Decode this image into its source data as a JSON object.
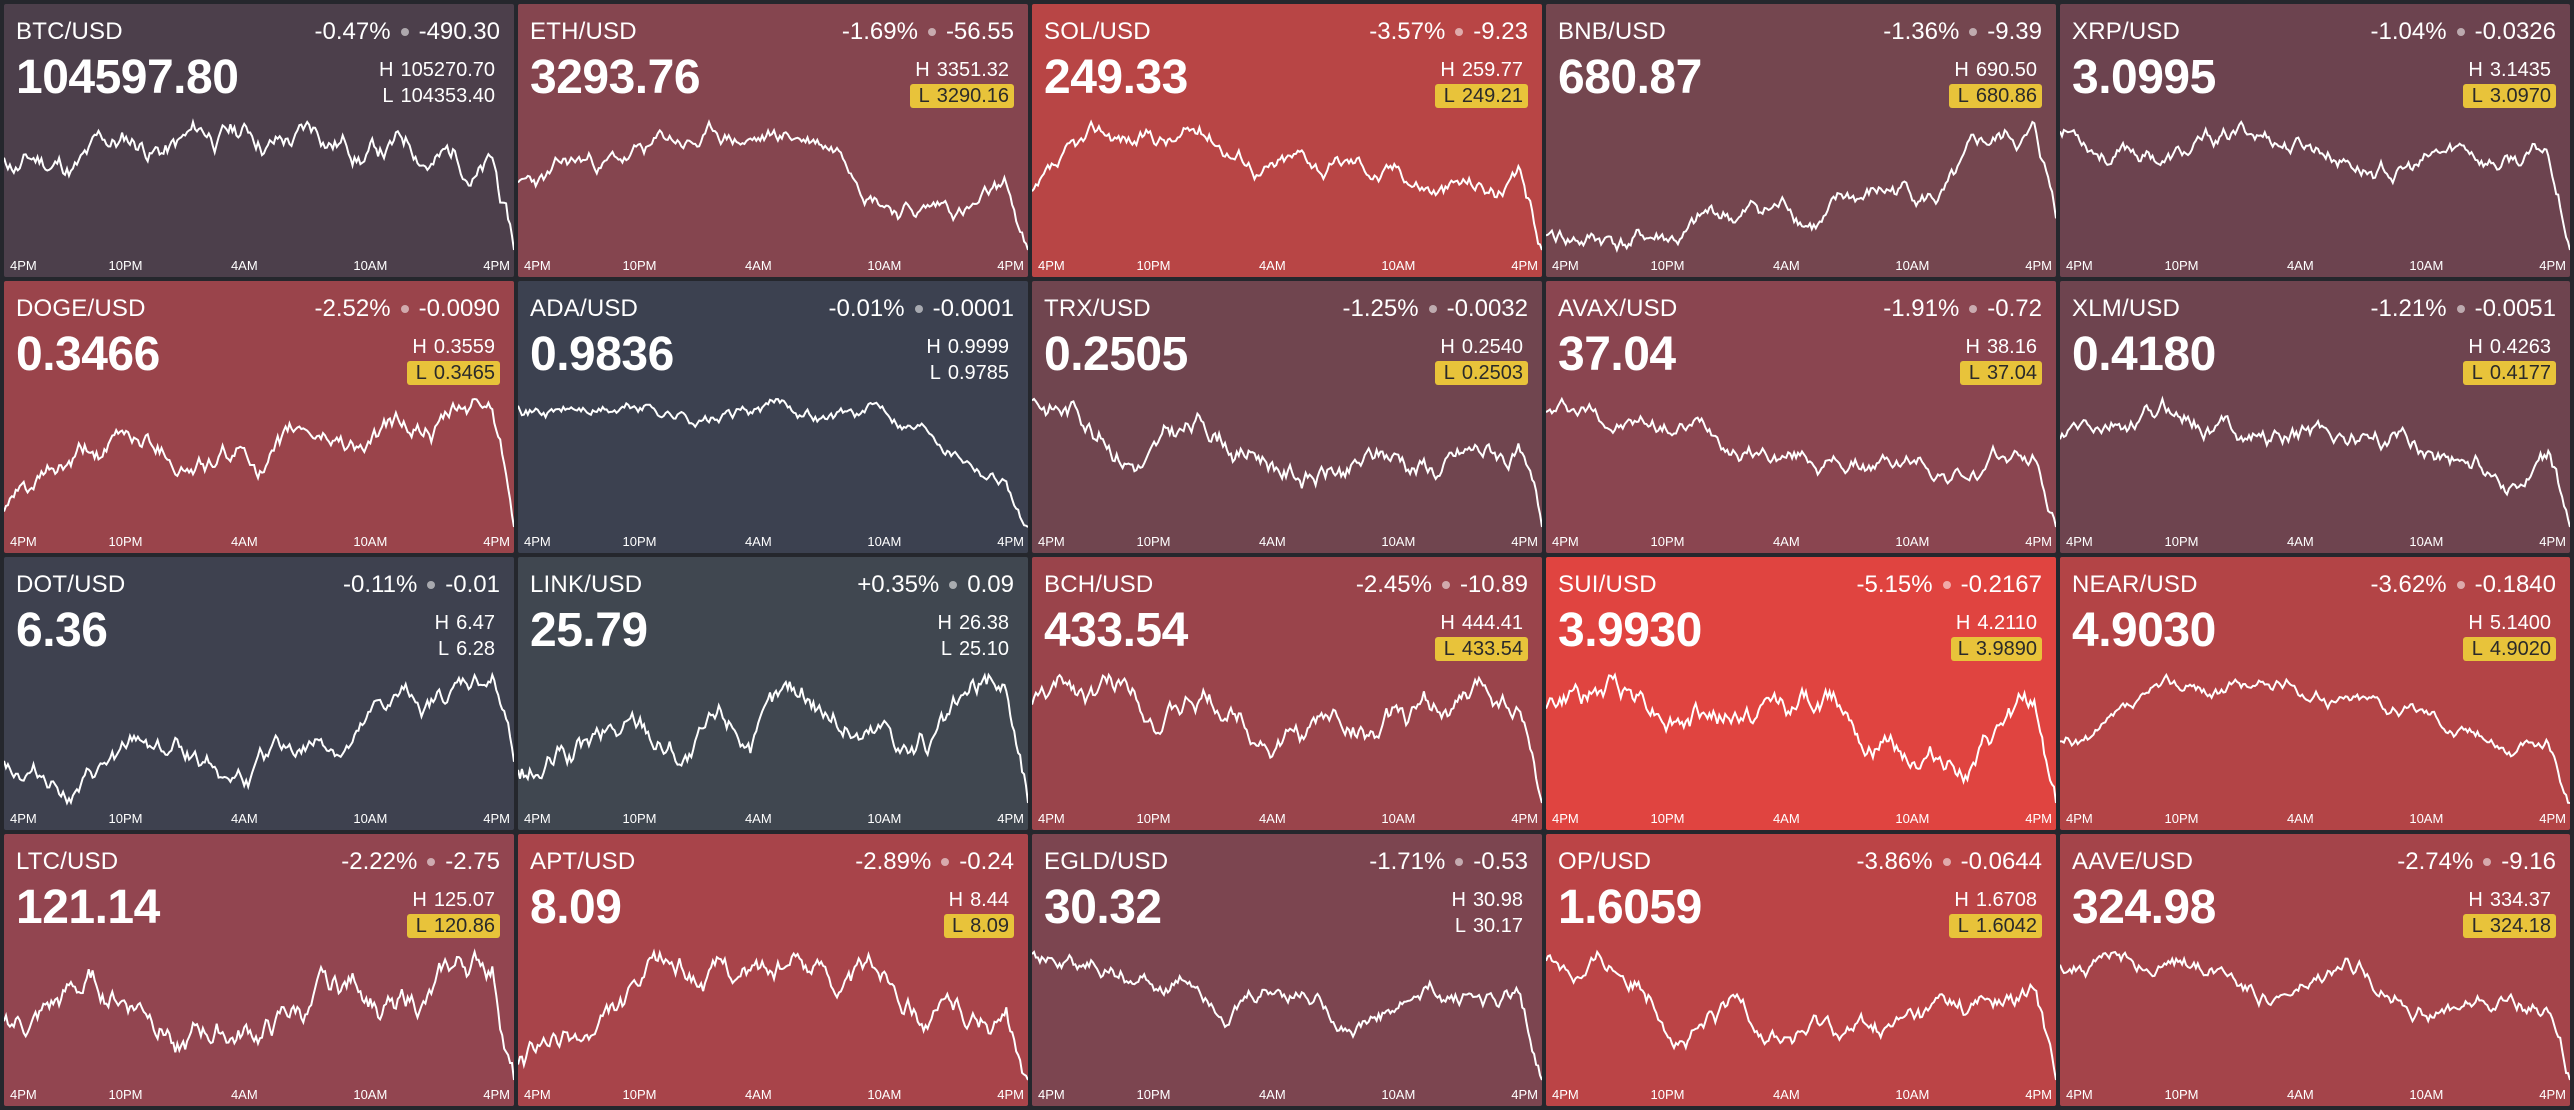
{
  "time_labels": [
    "4PM",
    "10PM",
    "4AM",
    "10AM",
    "4PM"
  ],
  "colors": {
    "neutral": "#3d414d",
    "red_mild": "#6c4550",
    "red_mid": "#8a4550",
    "red_strong": "#b34446",
    "red_max": "#e04440",
    "highlight": "#e8c33a"
  },
  "tickers": [
    {
      "symbol": "BTC/USD",
      "change_pct": "-0.47%",
      "change_abs": "-490.30",
      "price": "104597.80",
      "high_label": "H",
      "high": "105270.70",
      "low_label": "L",
      "low": "104353.40",
      "high_hit": false,
      "low_hit": false,
      "bg": "#4c3f4b",
      "seed": 11
    },
    {
      "symbol": "ETH/USD",
      "change_pct": "-1.69%",
      "change_abs": "-56.55",
      "price": "3293.76",
      "high_label": "H",
      "high": "3351.32",
      "low_label": "L",
      "low": "3290.16",
      "high_hit": false,
      "low_hit": true,
      "bg": "#85454f",
      "seed": 23
    },
    {
      "symbol": "SOL/USD",
      "change_pct": "-3.57%",
      "change_abs": "-9.23",
      "price": "249.33",
      "high_label": "H",
      "high": "259.77",
      "low_label": "L",
      "low": "249.21",
      "high_hit": false,
      "low_hit": true,
      "bg": "#b84545",
      "seed": 37
    },
    {
      "symbol": "BNB/USD",
      "change_pct": "-1.36%",
      "change_abs": "-9.39",
      "price": "680.87",
      "high_label": "H",
      "high": "690.50",
      "low_label": "L",
      "low": "680.86",
      "high_hit": false,
      "low_hit": true,
      "bg": "#74464f",
      "seed": 41
    },
    {
      "symbol": "XRP/USD",
      "change_pct": "-1.04%",
      "change_abs": "-0.0326",
      "price": "3.0995",
      "high_label": "H",
      "high": "3.1435",
      "low_label": "L",
      "low": "3.0970",
      "high_hit": false,
      "low_hit": true,
      "bg": "#6c434f",
      "seed": 53
    },
    {
      "symbol": "DOGE/USD",
      "change_pct": "-2.52%",
      "change_abs": "-0.0090",
      "price": "0.3466",
      "high_label": "H",
      "high": "0.3559",
      "low_label": "L",
      "low": "0.3465",
      "high_hit": false,
      "low_hit": true,
      "bg": "#9a444b",
      "seed": 61
    },
    {
      "symbol": "ADA/USD",
      "change_pct": "-0.01%",
      "change_abs": "-0.0001",
      "price": "0.9836",
      "high_label": "H",
      "high": "0.9999",
      "low_label": "L",
      "low": "0.9785",
      "high_hit": false,
      "low_hit": false,
      "bg": "#3c4150",
      "seed": 71
    },
    {
      "symbol": "TRX/USD",
      "change_pct": "-1.25%",
      "change_abs": "-0.0032",
      "price": "0.2505",
      "high_label": "H",
      "high": "0.2540",
      "low_label": "L",
      "low": "0.2503",
      "high_hit": false,
      "low_hit": true,
      "bg": "#70454f",
      "seed": 83
    },
    {
      "symbol": "AVAX/USD",
      "change_pct": "-1.91%",
      "change_abs": "-0.72",
      "price": "37.04",
      "high_label": "H",
      "high": "38.16",
      "low_label": "L",
      "low": "37.04",
      "high_hit": false,
      "low_hit": true,
      "bg": "#8a4550",
      "seed": 97
    },
    {
      "symbol": "XLM/USD",
      "change_pct": "-1.21%",
      "change_abs": "-0.0051",
      "price": "0.4180",
      "high_label": "H",
      "high": "0.4263",
      "low_label": "L",
      "low": "0.4177",
      "high_hit": false,
      "low_hit": true,
      "bg": "#6e444f",
      "seed": 103
    },
    {
      "symbol": "DOT/USD",
      "change_pct": "-0.11%",
      "change_abs": "-0.01",
      "price": "6.36",
      "high_label": "H",
      "high": "6.47",
      "low_label": "L",
      "low": "6.28",
      "high_hit": false,
      "low_hit": false,
      "bg": "#3e414f",
      "seed": 113
    },
    {
      "symbol": "LINK/USD",
      "change_pct": "+0.35%",
      "change_abs": "0.09",
      "price": "25.79",
      "high_label": "H",
      "high": "26.38",
      "low_label": "L",
      "low": "25.10",
      "high_hit": false,
      "low_hit": false,
      "bg": "#404750",
      "seed": 127
    },
    {
      "symbol": "BCH/USD",
      "change_pct": "-2.45%",
      "change_abs": "-10.89",
      "price": "433.54",
      "high_label": "H",
      "high": "444.41",
      "low_label": "L",
      "low": "433.54",
      "high_hit": false,
      "low_hit": true,
      "bg": "#9a444b",
      "seed": 131
    },
    {
      "symbol": "SUI/USD",
      "change_pct": "-5.15%",
      "change_abs": "-0.2167",
      "price": "3.9930",
      "high_label": "H",
      "high": "4.2110",
      "low_label": "L",
      "low": "3.9890",
      "high_hit": false,
      "low_hit": true,
      "bg": "#e04440",
      "seed": 149
    },
    {
      "symbol": "NEAR/USD",
      "change_pct": "-3.62%",
      "change_abs": "-0.1840",
      "price": "4.9030",
      "high_label": "H",
      "high": "5.1400",
      "low_label": "L",
      "low": "4.9020",
      "high_hit": false,
      "low_hit": true,
      "bg": "#b34446",
      "seed": 157
    },
    {
      "symbol": "LTC/USD",
      "change_pct": "-2.22%",
      "change_abs": "-2.75",
      "price": "121.14",
      "high_label": "H",
      "high": "125.07",
      "low_label": "L",
      "low": "120.86",
      "high_hit": false,
      "low_hit": true,
      "bg": "#924550",
      "seed": 163
    },
    {
      "symbol": "APT/USD",
      "change_pct": "-2.89%",
      "change_abs": "-0.24",
      "price": "8.09",
      "high_label": "H",
      "high": "8.44",
      "low_label": "L",
      "low": "8.09",
      "high_hit": false,
      "low_hit": true,
      "bg": "#a8444a",
      "seed": 173
    },
    {
      "symbol": "EGLD/USD",
      "change_pct": "-1.71%",
      "change_abs": "-0.53",
      "price": "30.32",
      "high_label": "H",
      "high": "30.98",
      "low_label": "L",
      "low": "30.17",
      "high_hit": false,
      "low_hit": false,
      "bg": "#7c4550",
      "seed": 181
    },
    {
      "symbol": "OP/USD",
      "change_pct": "-3.86%",
      "change_abs": "-0.0644",
      "price": "1.6059",
      "high_label": "H",
      "high": "1.6708",
      "low_label": "L",
      "low": "1.6042",
      "high_hit": false,
      "low_hit": true,
      "bg": "#bb4446",
      "seed": 191
    },
    {
      "symbol": "AAVE/USD",
      "change_pct": "-2.74%",
      "change_abs": "-9.16",
      "price": "324.98",
      "high_label": "H",
      "high": "334.37",
      "low_label": "L",
      "low": "324.18",
      "high_hit": false,
      "low_hit": true,
      "bg": "#a4444a",
      "seed": 197
    }
  ]
}
